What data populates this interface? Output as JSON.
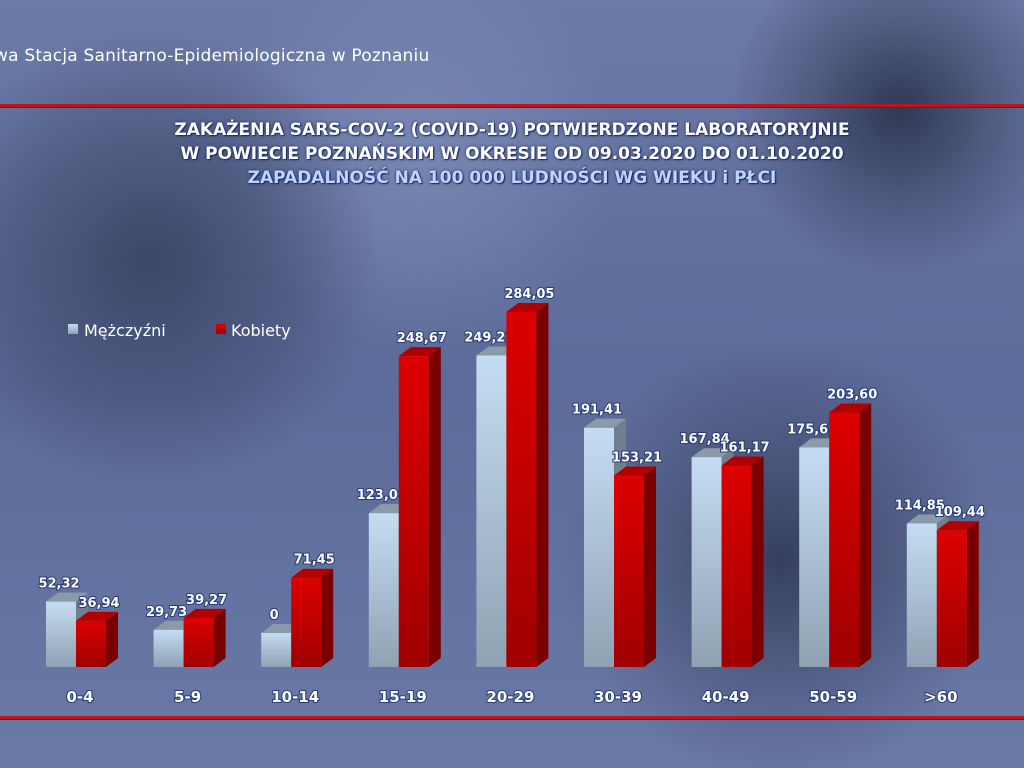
{
  "header": "wa Stacja Sanitarno-Epidemiologiczna w Poznaniu",
  "chart_data": {
    "type": "bar",
    "title": [
      "ZAKAŻENIA SARS-COV-2 (COVID-19) POTWIERDZONE LABORATORYJNIE",
      "W POWIECIE POZNAŃSKIM W OKRESIE OD 09.03.2020 DO 01.10.2020"
    ],
    "subtitle": "ZAPADALNOŚĆ NA 100 000 LUDNOŚCI WG WIEKU i PŁCI",
    "categories": [
      "0-4",
      "5-9",
      "10-14",
      "15-19",
      "20-29",
      "30-39",
      "40-49",
      "50-59",
      ">60"
    ],
    "series": [
      {
        "name": "Mężczyźni",
        "color": "#b8d0e8",
        "values": [
          52.32,
          29.73,
          0,
          123.06,
          249.23,
          191.41,
          167.84,
          175.69,
          114.85
        ],
        "labels": [
          "52,32",
          "29,73",
          "0",
          "123,06",
          "249,23",
          "191,41",
          "167,84",
          "175,69",
          "114,85"
        ]
      },
      {
        "name": "Kobiety",
        "color": "#cc0000",
        "values": [
          36.94,
          39.27,
          71.45,
          248.67,
          284.05,
          153.21,
          161.17,
          203.6,
          109.44
        ],
        "labels": [
          "36,94",
          "39,27",
          "71,45",
          "248,67",
          "284,05",
          "153,21",
          "161,17",
          "203,60",
          "109,44"
        ]
      }
    ],
    "legend": "top-left",
    "grid": false,
    "ylim": [
      0,
      300
    ]
  }
}
